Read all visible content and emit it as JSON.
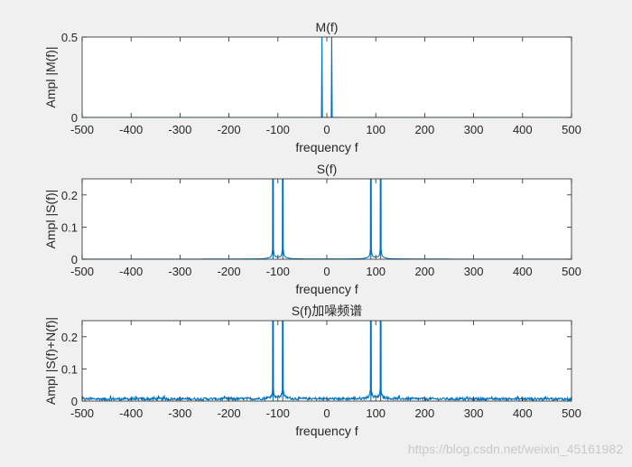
{
  "chart_data": [
    {
      "type": "line",
      "title": "M(f)",
      "xlabel": "frequency f",
      "ylabel": "Ampl |M(f)|",
      "xlim": [
        -500,
        500
      ],
      "ylim": [
        0,
        0.5
      ],
      "xticks": [
        -500,
        -400,
        -300,
        -200,
        -100,
        0,
        100,
        200,
        300,
        400,
        500
      ],
      "yticks": [
        0,
        0.5
      ],
      "ytick_labels": [
        "0",
        "0.5"
      ],
      "grid": false,
      "color": "#0072bd",
      "series": [
        {
          "peaks": [
            {
              "x": -10,
              "y": 0.5
            },
            {
              "x": 10,
              "y": 0.5
            }
          ],
          "points": [
            [
              -500,
              0
            ],
            [
              -11,
              0
            ],
            [
              -10,
              0.5
            ],
            [
              -9,
              0
            ],
            [
              9,
              0
            ],
            [
              10,
              0.5
            ],
            [
              11,
              0
            ],
            [
              500,
              0
            ]
          ]
        }
      ]
    },
    {
      "type": "line",
      "title": "S(f)",
      "xlabel": "frequency f",
      "ylabel": "Ampl |S(f)|",
      "xlim": [
        -500,
        500
      ],
      "ylim": [
        0,
        0.25
      ],
      "xticks": [
        -500,
        -400,
        -300,
        -200,
        -100,
        0,
        100,
        200,
        300,
        400,
        500
      ],
      "yticks": [
        0,
        0.1,
        0.2
      ],
      "ytick_labels": [
        "0",
        "0.1",
        "0.2"
      ],
      "grid": false,
      "color": "#0072bd",
      "series": [
        {
          "peaks": [
            {
              "x": -110,
              "y": 0.25
            },
            {
              "x": -90,
              "y": 0.25
            },
            {
              "x": 90,
              "y": 0.25
            },
            {
              "x": 110,
              "y": 0.25
            }
          ],
          "noise_floor": 0
        }
      ]
    },
    {
      "type": "line",
      "title": "S(f)加噪频谱",
      "xlabel": "frequency f",
      "ylabel": "Ampl |S(f)+N(f)|",
      "xlim": [
        -500,
        500
      ],
      "ylim": [
        0,
        0.25
      ],
      "xticks": [
        -500,
        -400,
        -300,
        -200,
        -100,
        0,
        100,
        200,
        300,
        400,
        500
      ],
      "yticks": [
        0,
        0.1,
        0.2
      ],
      "ytick_labels": [
        "0",
        "0.1",
        "0.2"
      ],
      "grid": false,
      "color": "#0072bd",
      "series": [
        {
          "peaks": [
            {
              "x": -110,
              "y": 0.25
            },
            {
              "x": -90,
              "y": 0.25
            },
            {
              "x": 90,
              "y": 0.25
            },
            {
              "x": 110,
              "y": 0.25
            }
          ],
          "noise_floor": 0.007
        }
      ]
    }
  ],
  "watermark": "https://blog.csdn.net/weixin_45161982"
}
